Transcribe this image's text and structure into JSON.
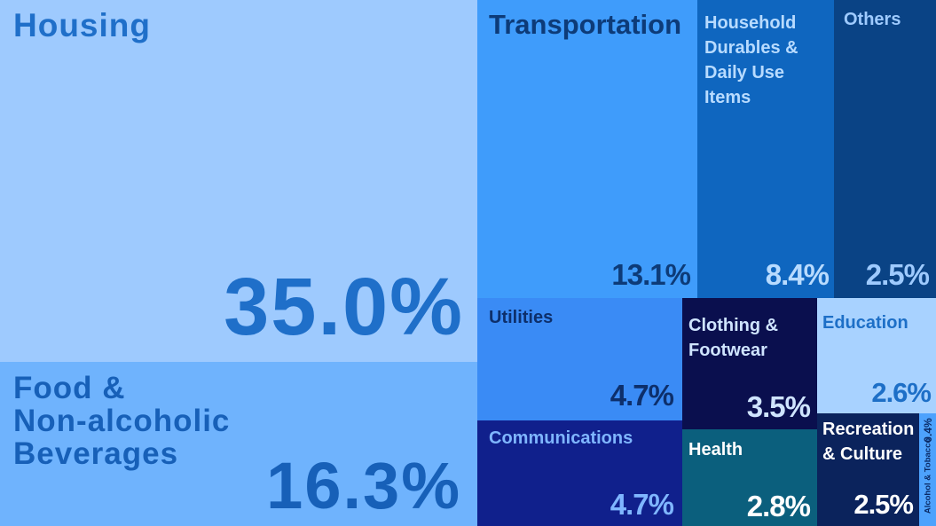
{
  "chart_data": {
    "type": "treemap",
    "title": "",
    "unit": "%",
    "categories": [
      {
        "key": "housing",
        "label": "Housing",
        "value": 35.0,
        "display": "35.0%",
        "color": "#9ecafe",
        "label_color": "#1f6fc9",
        "value_color": "#1f6fc9"
      },
      {
        "key": "food",
        "label": "Food &\nNon-alcoholic\nBeverages",
        "value": 16.3,
        "display": "16.3%",
        "color": "#6fb3fd",
        "label_color": "#1760b8",
        "value_color": "#1760b8"
      },
      {
        "key": "transportation",
        "label": "Transportation",
        "value": 13.1,
        "display": "13.1%",
        "color": "#3f9cfb",
        "label_color": "#0d3b78",
        "value_color": "#0d3b78"
      },
      {
        "key": "household",
        "label": "Household\nDurables &\nDaily Use Items",
        "value": 8.4,
        "display": "8.4%",
        "color": "#0f66bf",
        "label_color": "#b8dbff",
        "value_color": "#b8dbff"
      },
      {
        "key": "others",
        "label": "Others",
        "value": 2.5,
        "display": "2.5%",
        "color": "#0a4385",
        "label_color": "#9ecafe",
        "value_color": "#9ecafe"
      },
      {
        "key": "utilities",
        "label": "Utilities",
        "value": 4.7,
        "display": "4.7%",
        "color": "#3a8bf5",
        "label_color": "#0d2f6b",
        "value_color": "#0d2f6b"
      },
      {
        "key": "communications",
        "label": "Communications",
        "value": 4.7,
        "display": "4.7%",
        "color": "#10208c",
        "label_color": "#7fb6ff",
        "value_color": "#7fb6ff"
      },
      {
        "key": "clothing",
        "label": "Clothing &\nFootwear",
        "value": 3.5,
        "display": "3.5%",
        "color": "#0a0f4e",
        "label_color": "#cfe4ff",
        "value_color": "#cfe4ff"
      },
      {
        "key": "health",
        "label": "Health",
        "value": 2.8,
        "display": "2.8%",
        "color": "#0b5f7d",
        "label_color": "#ffffff",
        "value_color": "#ffffff"
      },
      {
        "key": "education",
        "label": "Education",
        "value": 2.6,
        "display": "2.6%",
        "color": "#a8d2ff",
        "label_color": "#1d6fc7",
        "value_color": "#1d6fc7"
      },
      {
        "key": "recreation",
        "label": "Recreation\n& Culture",
        "value": 2.5,
        "display": "2.5%",
        "color": "#0b235c",
        "label_color": "#ffffff",
        "value_color": "#ffffff"
      },
      {
        "key": "alcohol",
        "label": "Alcohol & Tobacco",
        "value": 0.4,
        "display": "0.4%",
        "color": "#4da2fd",
        "label_color": "#0a2a66",
        "value_color": "#0a2a66"
      }
    ]
  }
}
